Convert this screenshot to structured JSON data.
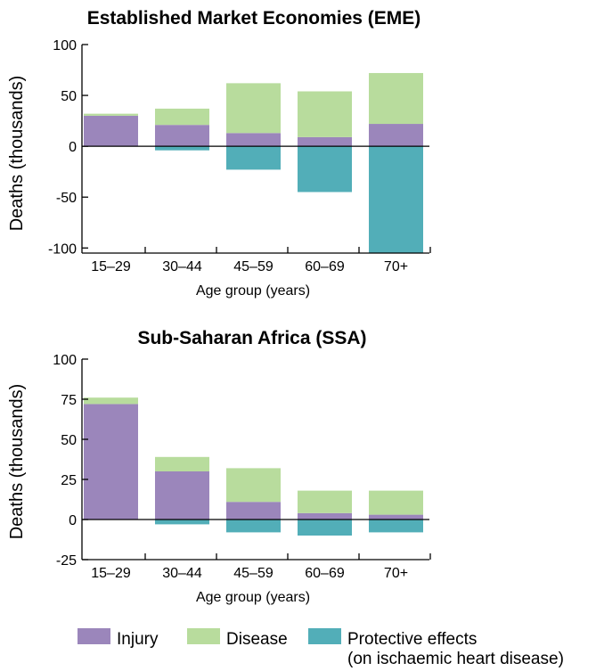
{
  "chart_data": [
    {
      "type": "bar",
      "stacked": true,
      "title": "Established Market Economies (EME)",
      "xlabel": "Age group (years)",
      "ylabel": "Deaths (thousands)",
      "categories": [
        "15–29",
        "30–44",
        "45–59",
        "60–69",
        "70+"
      ],
      "ylim": [
        -105,
        100
      ],
      "yticks": [
        -100,
        -50,
        0,
        50,
        100
      ],
      "ytick_labels": [
        "-100",
        "-50",
        "0",
        "50",
        "100"
      ],
      "series": [
        {
          "name": "Injury",
          "values": [
            30,
            21,
            13,
            9,
            22
          ]
        },
        {
          "name": "Disease",
          "values": [
            2,
            16,
            49,
            45,
            50
          ]
        },
        {
          "name": "Protective effects (on ischaemic heart disease)",
          "values": [
            0,
            -4,
            -23,
            -45,
            -105
          ]
        }
      ]
    },
    {
      "type": "bar",
      "stacked": true,
      "title": "Sub-Saharan Africa (SSA)",
      "xlabel": "Age group (years)",
      "ylabel": "Deaths (thousands)",
      "categories": [
        "15–29",
        "30–44",
        "45–59",
        "60–69",
        "70+"
      ],
      "ylim": [
        -25,
        100
      ],
      "yticks": [
        -25,
        0,
        25,
        50,
        75,
        100
      ],
      "ytick_labels": [
        "-25",
        "0",
        "25",
        "50",
        "75",
        "100"
      ],
      "series": [
        {
          "name": "Injury",
          "values": [
            72,
            30,
            11,
            4,
            3
          ]
        },
        {
          "name": "Disease",
          "values": [
            4,
            9,
            21,
            14,
            15
          ]
        },
        {
          "name": "Protective effects (on ischaemic heart disease)",
          "values": [
            0,
            -3,
            -8,
            -10,
            -8
          ]
        }
      ]
    }
  ],
  "legend": {
    "items": [
      {
        "label": "Injury",
        "color": "#9b86bb"
      },
      {
        "label": "Disease",
        "color": "#b8dc9d"
      },
      {
        "label_line1": "Protective effects",
        "label_line2": "(on ischaemic heart disease)",
        "color": "#52aeb8"
      }
    ]
  },
  "colors": {
    "injury": "#9b86bb",
    "disease": "#b8dc9d",
    "protective": "#52aeb8",
    "axis": "#000000"
  }
}
